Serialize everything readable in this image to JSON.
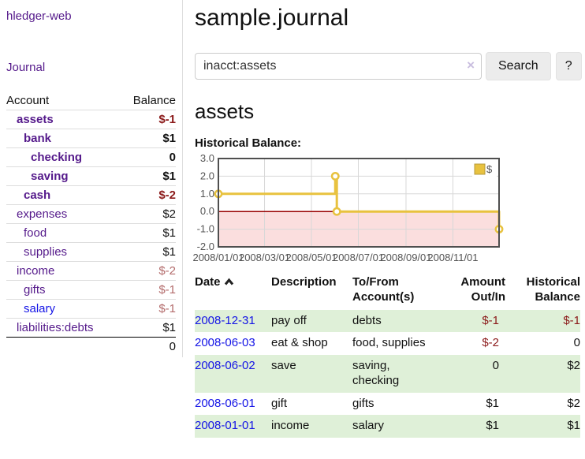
{
  "sidebar": {
    "brand": "hledger-web",
    "journal_link": "Journal",
    "accounts_table": {
      "headers": {
        "account": "Account",
        "balance": "Balance"
      },
      "rows": [
        {
          "name": "assets",
          "depth": 1,
          "bold": true,
          "name_color": "purple",
          "balance": "$-1",
          "balance_color": "neg-strong"
        },
        {
          "name": "bank",
          "depth": 2,
          "bold": true,
          "name_color": "purple",
          "balance": "$1",
          "balance_color": "pos"
        },
        {
          "name": "checking",
          "depth": 3,
          "bold": true,
          "name_color": "purple",
          "balance": "0",
          "balance_color": "pos"
        },
        {
          "name": "saving",
          "depth": 3,
          "bold": true,
          "name_color": "purple",
          "balance": "$1",
          "balance_color": "pos"
        },
        {
          "name": "cash",
          "depth": 2,
          "bold": true,
          "name_color": "purple",
          "balance": "$-2",
          "balance_color": "neg-strong"
        },
        {
          "name": "expenses",
          "depth": 1,
          "bold": false,
          "name_color": "purple",
          "balance": "$2",
          "balance_color": "pos"
        },
        {
          "name": "food",
          "depth": 2,
          "bold": false,
          "name_color": "purple",
          "balance": "$1",
          "balance_color": "pos"
        },
        {
          "name": "supplies",
          "depth": 2,
          "bold": false,
          "name_color": "purple",
          "balance": "$1",
          "balance_color": "pos"
        },
        {
          "name": "income",
          "depth": 1,
          "bold": false,
          "name_color": "purple",
          "balance": "$-2",
          "balance_color": "neg-soft"
        },
        {
          "name": "gifts",
          "depth": 2,
          "bold": false,
          "name_color": "purple",
          "balance": "$-1",
          "balance_color": "neg-soft"
        },
        {
          "name": "salary",
          "depth": 2,
          "bold": false,
          "name_color": "blue",
          "balance": "$-1",
          "balance_color": "neg-soft"
        },
        {
          "name": "liabilities:debts",
          "depth": 1,
          "bold": false,
          "name_color": "purple",
          "balance": "$1",
          "balance_color": "pos"
        }
      ],
      "total": "0"
    }
  },
  "main": {
    "title": "sample.journal",
    "search": {
      "value": "inacct:assets",
      "clear_icon": "×",
      "button_label": "Search",
      "help_label": "?"
    },
    "account_heading": "assets",
    "chart_title": "Historical Balance:"
  },
  "chart_data": {
    "type": "line",
    "step": true,
    "title": "Historical Balance",
    "x_domain": [
      "2008-01-01",
      "2008-12-31"
    ],
    "ylim": [
      -2,
      3
    ],
    "y_ticks": [
      3,
      2,
      1,
      0,
      -1,
      -2
    ],
    "x_ticks": [
      "2008/01/01",
      "2008/03/01",
      "2008/05/01",
      "2008/07/01",
      "2008/09/01",
      "2008/11/01"
    ],
    "series": [
      {
        "name": "$",
        "color": "#e8c23f",
        "points": [
          [
            "2008-01-01",
            1
          ],
          [
            "2008-06-01",
            2
          ],
          [
            "2008-06-03",
            0
          ],
          [
            "2008-12-31",
            -1
          ]
        ]
      }
    ],
    "legend": {
      "label": "$",
      "position": "top-right"
    },
    "colors": {
      "negative_region": "#fbdede",
      "zero_line": "#990000",
      "grid": "#d8d8d8",
      "border": "#4f4f4f",
      "marker_fill": "#ffffff",
      "legend_square_border": "#b6983a"
    }
  },
  "register": {
    "headers": {
      "date": "Date",
      "description": "Description",
      "accounts": "To/From\nAccount(s)",
      "amount": "Amount\nOut/In",
      "balance": "Historical\nBalance"
    },
    "sort_icon": "chevron-up",
    "rows": [
      {
        "date": "2008-12-31",
        "description": "pay off",
        "accounts": "debts",
        "amount": "$-1",
        "amount_color": "neg",
        "balance": "$-1",
        "balance_color": "neg",
        "shaded": true
      },
      {
        "date": "2008-06-03",
        "description": "eat & shop",
        "accounts": "food, supplies",
        "amount": "$-2",
        "amount_color": "neg",
        "balance": "0",
        "balance_color": "pos",
        "shaded": false
      },
      {
        "date": "2008-06-02",
        "description": "save",
        "accounts": "saving,\nchecking",
        "amount": "0",
        "amount_color": "pos",
        "balance": "$2",
        "balance_color": "pos",
        "shaded": true
      },
      {
        "date": "2008-06-01",
        "description": "gift",
        "accounts": "gifts",
        "amount": "$1",
        "amount_color": "pos",
        "balance": "$2",
        "balance_color": "pos",
        "shaded": false
      },
      {
        "date": "2008-01-01",
        "description": "income",
        "accounts": "salary",
        "amount": "$1",
        "amount_color": "pos",
        "balance": "$1",
        "balance_color": "pos",
        "shaded": true
      }
    ]
  }
}
